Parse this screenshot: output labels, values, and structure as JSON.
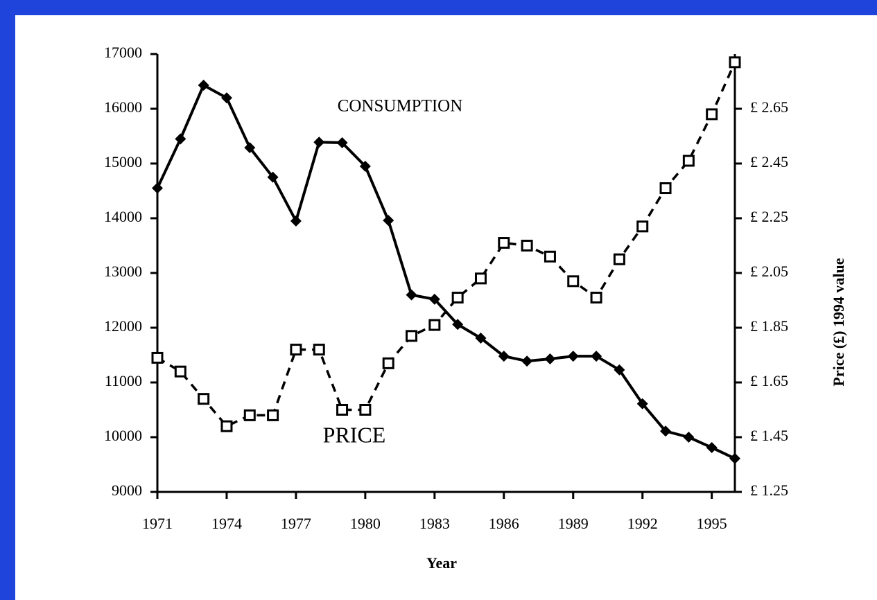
{
  "chart_data": {
    "type": "line",
    "x_label": "Year",
    "y2_label": "Price (£) 1994 value",
    "x": [
      1971,
      1972,
      1973,
      1974,
      1975,
      1976,
      1977,
      1978,
      1979,
      1980,
      1981,
      1982,
      1983,
      1984,
      1985,
      1986,
      1987,
      1988,
      1989,
      1990,
      1991,
      1992,
      1993,
      1994,
      1995,
      1996
    ],
    "series": [
      {
        "name": "CONSUMPTION",
        "color": "#000000",
        "marker": "diamond",
        "dashed": false,
        "values": [
          14550,
          15450,
          16430,
          16200,
          15290,
          14750,
          13950,
          15390,
          15380,
          14950,
          13960,
          12600,
          12520,
          12060,
          11810,
          11480,
          11390,
          11430,
          11480,
          11480,
          11230,
          10610,
          10110,
          10000,
          9810,
          9610
        ]
      },
      {
        "name": "PRICE",
        "color": "#000000",
        "marker": "square",
        "dashed": true,
        "axis": "y2",
        "values": [
          1.74,
          1.69,
          1.59,
          1.49,
          1.53,
          1.53,
          1.77,
          1.77,
          1.55,
          1.55,
          1.72,
          1.82,
          1.86,
          1.96,
          2.03,
          2.16,
          2.15,
          2.11,
          2.02,
          1.96,
          2.1,
          2.22,
          2.36,
          2.46,
          2.63,
          2.82
        ]
      }
    ],
    "xlim": [
      1971,
      1996
    ],
    "xticks": [
      1971,
      1974,
      1977,
      1980,
      1983,
      1986,
      1989,
      1992,
      1995
    ],
    "ylim": [
      9000,
      17000
    ],
    "yticks": [
      9000,
      10000,
      11000,
      12000,
      13000,
      14000,
      15000,
      16000,
      17000
    ],
    "y2lim": [
      1.25,
      2.85
    ],
    "y2ticks": [
      {
        "value": 1.25,
        "label": "£ 1.25"
      },
      {
        "value": 1.45,
        "label": "£ 1.45"
      },
      {
        "value": 1.65,
        "label": "£ 1.65"
      },
      {
        "value": 1.85,
        "label": "£ 1.85"
      },
      {
        "value": 2.05,
        "label": "£ 2.05"
      },
      {
        "value": 2.25,
        "label": "£ 2.25"
      },
      {
        "value": 2.45,
        "label": "£ 2.45"
      },
      {
        "value": 2.65,
        "label": "£ 2.65"
      }
    ],
    "grid": false
  }
}
